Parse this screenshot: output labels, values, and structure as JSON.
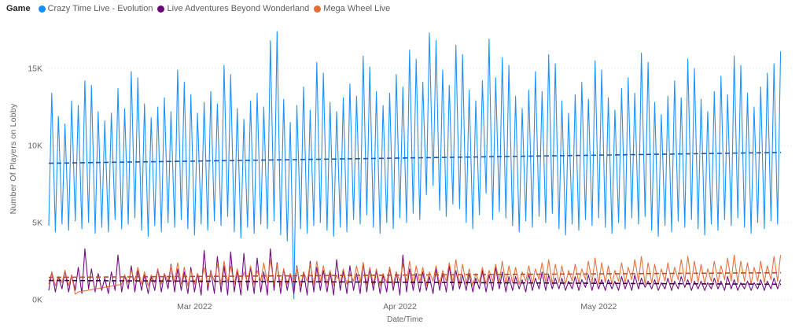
{
  "legend": {
    "title": "Game"
  },
  "colors": {
    "background": "#ffffff",
    "gridline": "#DEDEDE",
    "axis_text": "#666666",
    "legend_text": "#605E5C",
    "legend_title_text": "#252423"
  },
  "chart_data": {
    "type": "line",
    "title": "",
    "xlabel": "Date/Time",
    "ylabel": "Number Of Players on Lobby",
    "legend_position": "top-left",
    "grid": "dotted-horizontal",
    "units": "thousands of players",
    "ylim": [
      0,
      17.9
    ],
    "y_ticks": [
      "0K",
      "5K",
      "10K",
      "15K"
    ],
    "y_tick_values": [
      0,
      5,
      10,
      15
    ],
    "x_ticks": [
      "Mar 2022",
      "Apr 2022",
      "May 2022"
    ],
    "x_tick_days": [
      22,
      53,
      83
    ],
    "x_range_days": 111,
    "points_per_day": "trough then peak (intraday oscillation)",
    "series": [
      {
        "name": "Crazy Time Live - Evolution",
        "color": "#118DFF",
        "trend_color": "#1758B7",
        "trend": [
          8.85,
          9.55
        ],
        "troughs": [
          4.8,
          4.4,
          4.9,
          4.5,
          5.1,
          4.6,
          5.0,
          4.3,
          4.7,
          4.4,
          5.2,
          4.6,
          4.9,
          5.3,
          4.5,
          4.1,
          4.8,
          4.4,
          5.0,
          4.7,
          5.2,
          4.6,
          4.2,
          4.9,
          4.5,
          5.1,
          4.8,
          5.4,
          4.4,
          4.0,
          4.7,
          4.3,
          4.9,
          4.6,
          5.1,
          4.2,
          3.8,
          0.05,
          4.6,
          4.3,
          4.8,
          5.0,
          4.5,
          4.1,
          4.7,
          4.4,
          5.2,
          4.9,
          5.5,
          4.7,
          4.3,
          5.0,
          4.6,
          5.3,
          5.0,
          5.6,
          5.2,
          6.8,
          7.4,
          5.8,
          5.4,
          6.2,
          5.9,
          5.0,
          4.6,
          5.5,
          6.9,
          5.2,
          5.7,
          5.3,
          4.8,
          4.4,
          5.1,
          4.7,
          5.4,
          5.0,
          5.6,
          4.6,
          4.2,
          4.9,
          4.5,
          5.2,
          4.8,
          5.3,
          4.7,
          4.3,
          5.0,
          4.6,
          5.3,
          4.9,
          5.4,
          4.5,
          4.1,
          4.8,
          4.4,
          5.1,
          4.7,
          5.2,
          4.6,
          4.2,
          4.9,
          4.5,
          5.2,
          4.8,
          5.3,
          4.7,
          4.3,
          5.0,
          4.6,
          5.1,
          4.9
        ],
        "peaks": [
          13.4,
          11.9,
          11.4,
          12.9,
          12.6,
          14.2,
          13.9,
          12.2,
          11.6,
          12.1,
          13.7,
          12.4,
          14.8,
          14.4,
          12.7,
          11.8,
          12.5,
          13.1,
          12.2,
          14.9,
          14.1,
          13.3,
          12.1,
          12.8,
          13.5,
          12.7,
          15.2,
          14.6,
          12.4,
          11.7,
          12.9,
          13.4,
          12.5,
          16.8,
          17.4,
          13.0,
          11.5,
          12.6,
          13.8,
          12.3,
          15.4,
          14.7,
          12.8,
          12.2,
          13.1,
          14.0,
          13.2,
          15.8,
          15.1,
          13.5,
          12.6,
          13.4,
          14.6,
          13.8,
          16.2,
          15.6,
          14.1,
          17.3,
          16.8,
          14.9,
          13.9,
          16.5,
          15.9,
          13.6,
          12.9,
          14.2,
          16.9,
          14.4,
          15.7,
          15.2,
          13.2,
          12.4,
          13.6,
          14.8,
          13.5,
          15.9,
          15.3,
          12.9,
          12.1,
          13.3,
          14.1,
          13.0,
          15.5,
          14.9,
          13.1,
          12.3,
          13.7,
          14.4,
          13.4,
          16.0,
          15.4,
          12.8,
          12.0,
          13.2,
          14.2,
          13.1,
          15.6,
          15.0,
          13.0,
          12.2,
          13.5,
          14.5,
          13.3,
          15.8,
          15.2,
          13.4,
          12.5,
          13.8,
          14.7,
          15.3,
          16.1
        ]
      },
      {
        "name": "Live Adventures Beyond Wonderland",
        "color": "#6B007B",
        "trend_color": "#3D0246",
        "trend": [
          1.25,
          1.0
        ],
        "troughs": [
          0.6,
          0.5,
          0.7,
          0.5,
          0.6,
          0.4,
          0.7,
          0.5,
          0.6,
          0.4,
          0.6,
          0.5,
          0.7,
          0.5,
          0.6,
          0.4,
          0.6,
          0.5,
          0.7,
          0.5,
          0.6,
          0.4,
          0.5,
          0.3,
          0.6,
          0.4,
          0.5,
          0.3,
          0.5,
          0.3,
          0.6,
          0.4,
          0.5,
          0.3,
          0.6,
          0.4,
          0.6,
          0.4,
          0.5,
          0.3,
          0.5,
          0.6,
          0.5,
          0.3,
          0.6,
          0.4,
          0.6,
          0.4,
          0.5,
          0.6,
          0.4,
          0.5,
          0.6,
          0.3,
          0.5,
          0.6,
          0.5,
          0.6,
          0.4,
          0.6,
          0.5,
          0.6,
          0.7,
          0.6,
          0.5,
          0.7,
          0.5,
          0.6,
          0.7,
          0.5,
          0.6,
          0.7,
          0.5,
          0.6,
          0.7,
          0.6,
          0.7,
          0.7,
          0.6,
          0.7,
          0.6,
          0.8,
          0.6,
          0.7,
          0.6,
          0.7,
          0.6,
          0.7,
          0.6,
          0.7,
          0.8,
          0.7,
          0.6,
          0.7,
          0.6,
          0.7,
          0.8,
          0.6,
          0.7,
          0.6,
          0.7,
          0.7,
          0.6,
          0.7,
          0.6,
          0.7,
          0.6,
          0.7,
          0.6,
          0.7,
          0.7
        ],
        "peaks": [
          1.8,
          1.5,
          1.9,
          1.6,
          2.1,
          3.3,
          2.0,
          1.7,
          1.4,
          1.8,
          2.9,
          1.6,
          2.2,
          1.9,
          1.6,
          1.5,
          2.0,
          1.7,
          2.3,
          2.0,
          1.8,
          2.1,
          1.7,
          3.2,
          1.9,
          2.8,
          2.2,
          3.1,
          1.9,
          3.0,
          2.1,
          2.7,
          1.8,
          3.3,
          2.4,
          2.0,
          1.7,
          2.2,
          1.8,
          2.5,
          2.1,
          1.9,
          1.8,
          2.6,
          1.9,
          2.2,
          1.7,
          2.4,
          2.0,
          1.9,
          1.6,
          2.1,
          1.8,
          2.9,
          2.0,
          1.7,
          1.8,
          1.5,
          2.0,
          1.7,
          2.2,
          1.9,
          1.6,
          1.7,
          1.4,
          1.9,
          1.6,
          2.1,
          1.8,
          1.5,
          1.5,
          1.3,
          1.7,
          1.4,
          1.8,
          1.6,
          1.4,
          1.4,
          1.2,
          1.5,
          1.3,
          1.6,
          1.4,
          1.3,
          1.3,
          1.2,
          1.5,
          1.3,
          1.6,
          1.4,
          1.2,
          1.3,
          1.1,
          1.4,
          1.2,
          1.5,
          1.3,
          1.2,
          1.2,
          1.1,
          1.4,
          1.2,
          1.5,
          1.3,
          1.1,
          1.2,
          1.1,
          1.3,
          1.2,
          1.4,
          1.3
        ]
      },
      {
        "name": "Mega Wheel Live",
        "color": "#E66C37",
        "trend_color": "#B44E24",
        "trend": [
          1.45,
          1.75
        ],
        "troughs": [
          1.0,
          0.9,
          1.1,
          0.9,
          0.35,
          null,
          null,
          null,
          null,
          null,
          null,
          1.0,
          1.1,
          1.2,
          1.0,
          0.9,
          1.1,
          1.0,
          1.2,
          1.1,
          1.0,
          0.9,
          1.0,
          1.1,
          0.9,
          1.2,
          1.0,
          1.1,
          1.0,
          0.9,
          1.1,
          1.0,
          1.2,
          1.1,
          1.0,
          0.9,
          1.0,
          1.1,
          0.9,
          1.2,
          1.0,
          1.1,
          1.0,
          0.9,
          1.1,
          1.0,
          1.2,
          1.1,
          1.0,
          1.0,
          0.9,
          1.1,
          1.0,
          1.2,
          1.1,
          1.0,
          1.1,
          0.9,
          1.2,
          1.0,
          1.2,
          1.1,
          1.0,
          1.0,
          0.9,
          1.1,
          1.0,
          1.2,
          1.1,
          1.0,
          1.1,
          1.0,
          1.2,
          1.0,
          1.3,
          1.1,
          1.0,
          1.1,
          1.0,
          1.2,
          1.1,
          1.3,
          1.1,
          1.0,
          1.1,
          1.0,
          1.2,
          1.1,
          1.3,
          1.2,
          1.0,
          1.1,
          1.0,
          1.2,
          1.1,
          1.3,
          1.2,
          1.1,
          1.1,
          1.0,
          1.2,
          1.1,
          1.3,
          1.2,
          1.1,
          1.2,
          1.0,
          1.2,
          1.1,
          1.3,
          1.2
        ],
        "peaks": [
          1.8,
          1.5,
          1.9,
          1.6,
          0.5,
          null,
          null,
          null,
          null,
          null,
          null,
          1.6,
          1.9,
          2.1,
          1.8,
          1.6,
          2.0,
          1.7,
          2.2,
          2.4,
          2.1,
          1.9,
          1.7,
          2.1,
          1.8,
          2.3,
          2.5,
          2.2,
          2.0,
          1.8,
          2.2,
          1.9,
          2.4,
          2.6,
          2.3,
          2.0,
          1.7,
          2.1,
          1.8,
          2.3,
          2.5,
          2.2,
          1.9,
          1.6,
          2.0,
          1.7,
          2.2,
          2.4,
          2.1,
          2.0,
          1.7,
          2.1,
          1.8,
          2.3,
          2.5,
          2.2,
          2.1,
          1.8,
          2.2,
          1.9,
          2.4,
          2.6,
          2.3,
          2.0,
          1.7,
          2.1,
          1.9,
          2.3,
          2.5,
          2.2,
          2.1,
          1.8,
          2.2,
          2.0,
          2.4,
          2.6,
          2.3,
          2.2,
          1.9,
          2.3,
          2.0,
          2.5,
          2.7,
          2.4,
          2.2,
          1.9,
          2.4,
          2.1,
          2.6,
          2.8,
          2.4,
          2.3,
          2.0,
          2.4,
          2.1,
          2.6,
          2.8,
          2.5,
          2.3,
          2.0,
          2.5,
          2.2,
          2.7,
          2.9,
          2.5,
          2.4,
          2.1,
          2.5,
          2.2,
          2.8,
          2.9
        ]
      }
    ],
    "annotations": [
      "Blue series has a single anomalous dip to 0K around mid-March 2022",
      "Orange series has a data gap in early period bridged by a straight rising segment",
      "Dashed lines are per-series average/trend lines"
    ]
  }
}
